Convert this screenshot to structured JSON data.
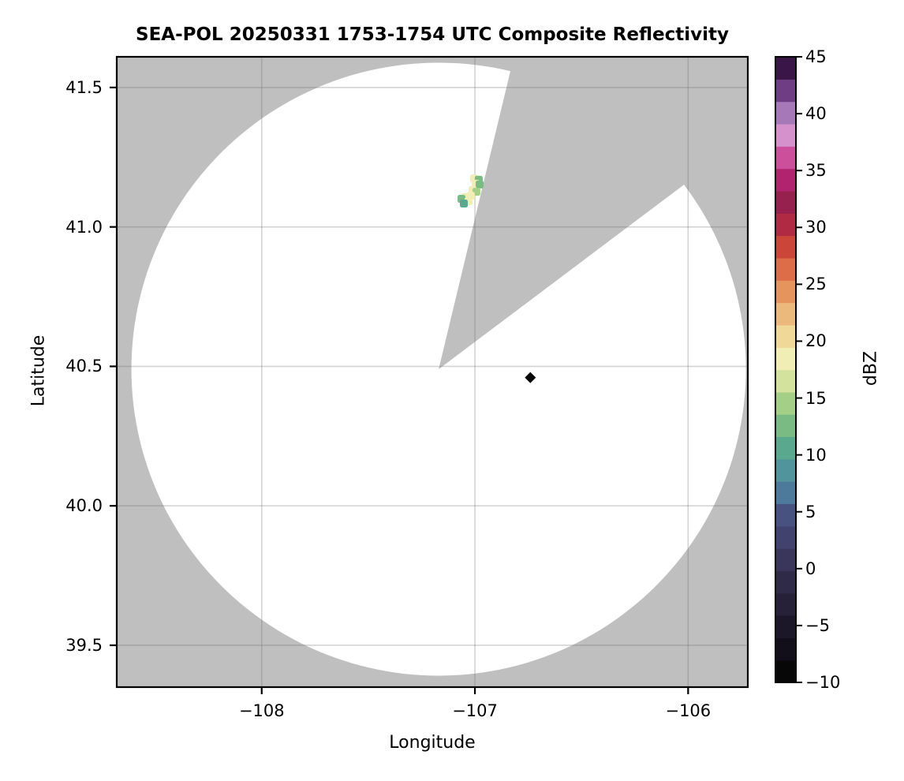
{
  "chart_data": {
    "type": "heatmap",
    "title": "SEA-POL 20250331 1753-1754 UTC Composite Reflectivity",
    "xlabel": "Longitude",
    "ylabel": "Latitude",
    "colorbar_label": "dBZ",
    "xlim": [
      -108.68,
      -105.72
    ],
    "ylim": [
      39.35,
      41.61
    ],
    "grid": true,
    "x_ticks": [
      {
        "label": "−108",
        "lon": -108
      },
      {
        "label": "−107",
        "lon": -107
      },
      {
        "label": "−106",
        "lon": -106
      }
    ],
    "y_ticks": [
      {
        "label": "41.5",
        "lat": 41.5
      },
      {
        "label": "41.0",
        "lat": 41.0
      },
      {
        "label": "40.5",
        "lat": 40.5
      },
      {
        "label": "40.0",
        "lat": 40.0
      },
      {
        "label": "39.5",
        "lat": 39.5
      }
    ],
    "colorbar": {
      "vmin": -10,
      "vmax": 45,
      "ticks": [
        {
          "label": "45",
          "value": 45
        },
        {
          "label": "40",
          "value": 40
        },
        {
          "label": "35",
          "value": 35
        },
        {
          "label": "30",
          "value": 30
        },
        {
          "label": "25",
          "value": 25
        },
        {
          "label": "20",
          "value": 20
        },
        {
          "label": "15",
          "value": 15
        },
        {
          "label": "10",
          "value": 10
        },
        {
          "label": "5",
          "value": 5
        },
        {
          "label": "0",
          "value": 0
        },
        {
          "label": "−5",
          "value": -5
        },
        {
          "label": "−10",
          "value": -10
        }
      ],
      "colors_bottom_to_top": [
        "#070707",
        "#120f1a",
        "#1c1728",
        "#262038",
        "#302a49",
        "#3a355b",
        "#42426e",
        "#475280",
        "#4d7a9b",
        "#52949b",
        "#5aa98e",
        "#79bb82",
        "#a3cf87",
        "#d3e29c",
        "#f0eeb5",
        "#f0d898",
        "#ecb97c",
        "#e6945e",
        "#dd6c48",
        "#cc4539",
        "#b12a43",
        "#96204e",
        "#b0246f",
        "#cb4f9b",
        "#d491cb",
        "#a678b8",
        "#6e3d83",
        "#3a1547"
      ]
    },
    "radar": {
      "center_lon": -107.17,
      "center_lat": 40.49,
      "range_lon_deg": 1.441,
      "range_lat_deg": 1.099,
      "blocked_sector_azimuth_deg": [
        13.5,
        53.0
      ]
    },
    "echo_cells": [
      {
        "lon": -107.004,
        "lat": 41.174,
        "dbz": 18
      },
      {
        "lon": -106.982,
        "lat": 41.169,
        "dbz": 12
      },
      {
        "lon": -106.997,
        "lat": 41.155,
        "dbz": 18
      },
      {
        "lon": -106.978,
        "lat": 41.152,
        "dbz": 12
      },
      {
        "lon": -107.011,
        "lat": 41.132,
        "dbz": 18
      },
      {
        "lon": -106.993,
        "lat": 41.126,
        "dbz": 15
      },
      {
        "lon": -107.019,
        "lat": 41.112,
        "dbz": 18
      },
      {
        "lon": -107.045,
        "lat": 41.107,
        "dbz": 18
      },
      {
        "lon": -107.063,
        "lat": 41.101,
        "dbz": 12
      },
      {
        "lon": -107.03,
        "lat": 41.092,
        "dbz": 18
      },
      {
        "lon": -107.052,
        "lat": 41.084,
        "dbz": 10
      }
    ],
    "point_marker": {
      "lon": -106.74,
      "lat": 40.46,
      "dbz": -10
    },
    "colors": {
      "no_data_background": "#bfbfbf",
      "coverage_fill": "#ffffff",
      "grid_line": "rgba(110,110,110,0.30)",
      "spine": "#000000",
      "text": "#000000"
    }
  }
}
